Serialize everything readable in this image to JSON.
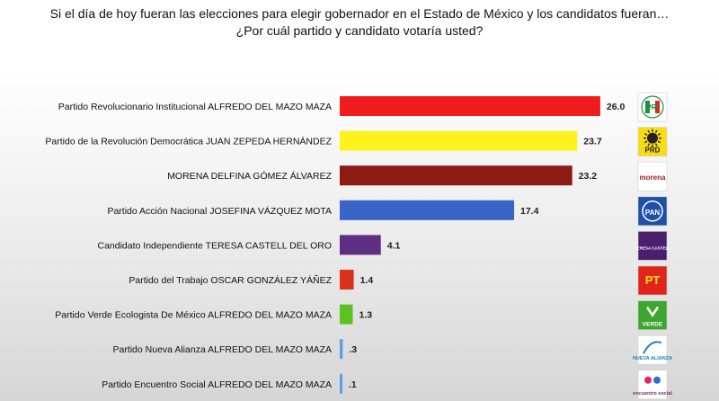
{
  "chart_data": {
    "type": "bar",
    "orientation": "horizontal",
    "title": [
      "Si el día de hoy fueran las elecciones para elegir gobernador en el Estado de México y los candidatos fueran…",
      "¿Por cuál partido y candidato votaría usted?"
    ],
    "xlim": [
      0,
      30
    ],
    "grid": false,
    "categories": [
      "Partido Revolucionario Institucional ALFREDO DEL MAZO MAZA",
      "Partido de la Revolución Democrática JUAN ZEPEDA HERNÁNDEZ",
      "MORENA DELFINA GÓMEZ ÁLVAREZ",
      "Partido Acción Nacional JOSEFINA VÁZQUEZ MOTA",
      "Candidato Independiente TERESA CASTELL DEL ORO",
      "Partido del Trabajo OSCAR GONZÁLEZ YÁÑEZ",
      "Partido Verde Ecologista De México ALFREDO DEL MAZO MAZA",
      "Partido Nueva Alianza ALFREDO DEL MAZO MAZA",
      "Partido Encuentro Social ALFREDO DEL MAZO MAZA"
    ],
    "values": [
      26.0,
      23.7,
      23.2,
      17.4,
      4.1,
      1.4,
      1.3,
      0.3,
      0.1
    ],
    "value_labels": [
      "26.0",
      "23.7",
      "23.2",
      "17.4",
      "4.1",
      "1.4",
      "1.3",
      ".3",
      ".1"
    ],
    "colors": [
      "#ee1c1c",
      "#fdf21c",
      "#8a1a12",
      "#3a63c9",
      "#5e2e82",
      "#d8321c",
      "#5cc21f",
      "#5aa0e0",
      "#5aa0e0"
    ]
  },
  "logos": [
    {
      "icon": "pri-logo-icon",
      "text": "PRI",
      "bg": "#ffffff"
    },
    {
      "icon": "prd-logo-icon",
      "text": "PRD",
      "bg": "#f9dc14"
    },
    {
      "icon": "morena-logo-icon",
      "text": "morena",
      "bg": "#ffffff"
    },
    {
      "icon": "pan-logo-icon",
      "text": "PAN",
      "bg": "#1f4fa8"
    },
    {
      "icon": "teresa-castell-logo-icon",
      "text": "TERESA CASTELL",
      "bg": "#4b1f6e"
    },
    {
      "icon": "pt-logo-icon",
      "text": "PT",
      "bg": "#e0241b"
    },
    {
      "icon": "verde-logo-icon",
      "text": "VERDE",
      "bg": "#3da62e"
    },
    {
      "icon": "nueva-alianza-logo-icon",
      "text": "NUEVA ALIANZA",
      "bg": "#ffffff"
    },
    {
      "icon": "encuentro-social-logo-icon",
      "text": "encuentro social",
      "bg": "#ffffff"
    }
  ]
}
